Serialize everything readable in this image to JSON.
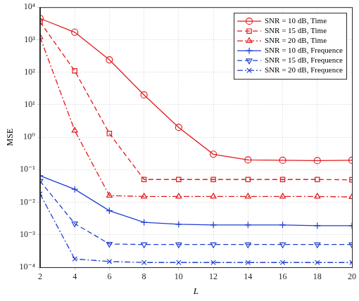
{
  "chart_data": {
    "type": "line",
    "x_label": "L",
    "y_label": "MSE",
    "x": [
      2,
      4,
      6,
      8,
      10,
      12,
      14,
      16,
      18,
      20
    ],
    "xlim": [
      2,
      20
    ],
    "xticks": [
      2,
      4,
      6,
      8,
      10,
      12,
      14,
      16,
      18,
      20
    ],
    "ylim": [
      0.0001,
      10000
    ],
    "yticks": [
      {
        "value": 0.0001,
        "label": "10⁻⁴"
      },
      {
        "value": 0.001,
        "label": "10⁻³"
      },
      {
        "value": 0.01,
        "label": "10⁻²"
      },
      {
        "value": 0.1,
        "label": "10⁻¹"
      },
      {
        "value": 1,
        "label": "10⁰"
      },
      {
        "value": 10,
        "label": "10¹"
      },
      {
        "value": 100,
        "label": "10²"
      },
      {
        "value": 1000,
        "label": "10³"
      },
      {
        "value": 10000,
        "label": "10⁴"
      }
    ],
    "log": "y",
    "grid": true,
    "legend": "upper right",
    "series": [
      {
        "name": "SNR = 10 dB, Time",
        "color": "#e31a1c",
        "marker": "circle",
        "line_style": "solid",
        "values": [
          4500,
          1700,
          240,
          20,
          2,
          0.3,
          0.2,
          0.195,
          0.19,
          0.195
        ]
      },
      {
        "name": "SNR = 15 dB, Time",
        "color": "#e31a1c",
        "marker": "square",
        "line_style": "dashed",
        "values": [
          3500,
          110,
          1.3,
          0.05,
          0.05,
          0.05,
          0.05,
          0.05,
          0.05,
          0.049
        ]
      },
      {
        "name": "SNR = 20 dB, Time",
        "color": "#e31a1c",
        "marker": "triangle",
        "line_style": "dashdot",
        "values": [
          1200,
          1.6,
          0.016,
          0.015,
          0.015,
          0.015,
          0.015,
          0.015,
          0.015,
          0.0145
        ]
      },
      {
        "name": "SNR = 10 dB, Frequence",
        "color": "#1f3fd1",
        "marker": "plus",
        "line_style": "solid",
        "values": [
          0.065,
          0.025,
          0.0055,
          0.0024,
          0.0021,
          0.002,
          0.002,
          0.002,
          0.0019,
          0.0019
        ]
      },
      {
        "name": "SNR = 15 dB, Frequence",
        "color": "#1f3fd1",
        "marker": "triangle_down",
        "line_style": "dashed",
        "values": [
          0.045,
          0.0022,
          0.00052,
          0.0005,
          0.0005,
          0.0005,
          0.0005,
          0.0005,
          0.0005,
          0.0005
        ]
      },
      {
        "name": "SNR = 20 dB, Frequence",
        "color": "#1f3fd1",
        "marker": "x",
        "line_style": "dashdot",
        "values": [
          0.018,
          0.00018,
          0.00015,
          0.00014,
          0.00014,
          0.00014,
          0.00014,
          0.00014,
          0.00014,
          0.00014
        ]
      }
    ]
  }
}
